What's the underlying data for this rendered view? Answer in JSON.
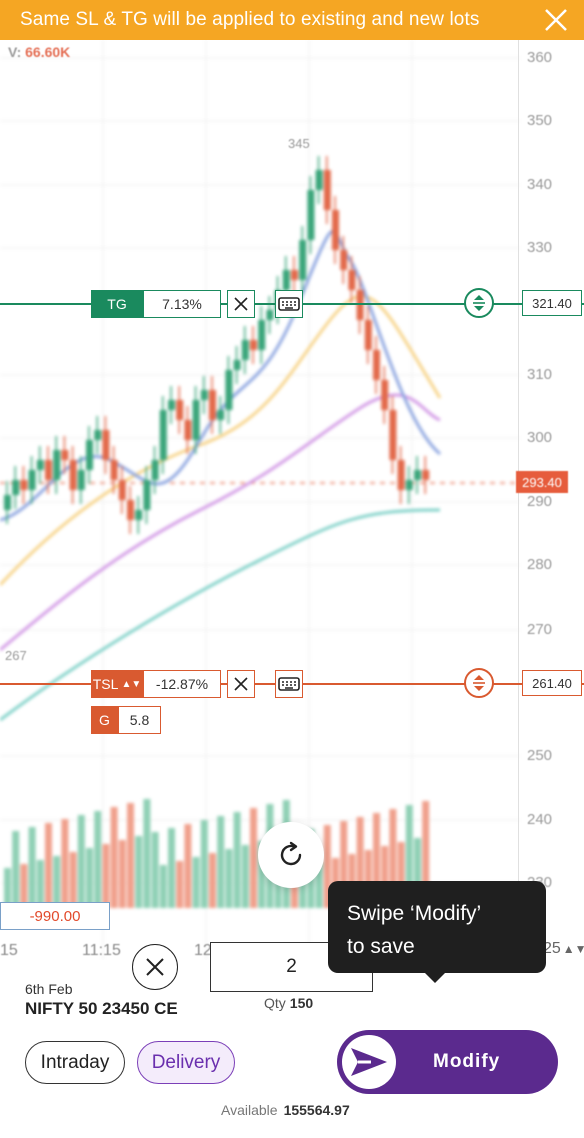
{
  "banner": {
    "message": "Same SL & TG will be applied to existing and new lots"
  },
  "chart": {
    "volume_label": "V:",
    "volume_value": "66.60K",
    "price_ticks": [
      "360",
      "350",
      "340",
      "330",
      "310",
      "300",
      "290",
      "280",
      "270",
      "250",
      "240",
      "230"
    ],
    "time_ticks": [
      "15",
      "11:15",
      "12:"
    ],
    "peak_label": "345",
    "low_label": "267",
    "current_price": "293.40",
    "pnl": "-990.00"
  },
  "target": {
    "label": "TG",
    "percent": "7.13%",
    "price": "321.40",
    "color": "#1a8a5e"
  },
  "stoploss": {
    "label": "TSL",
    "percent": "-12.87%",
    "price": "261.40",
    "gap_label": "G",
    "gap_value": "5.8",
    "color": "#d95a30"
  },
  "tooltip": {
    "line1": "Swipe ‘Modify’",
    "line2": "to save"
  },
  "order": {
    "expiry": "6th Feb",
    "symbol": "NIFTY 50 23450 CE",
    "quantity": "2",
    "qty_label": "Qty",
    "qty_value": "150",
    "lot_step": "25",
    "product_intraday": "Intraday",
    "product_delivery": "Delivery",
    "selected_product": "Delivery",
    "modify_label": "Modify",
    "available_label": "Available",
    "available_value": "155564.97"
  }
}
